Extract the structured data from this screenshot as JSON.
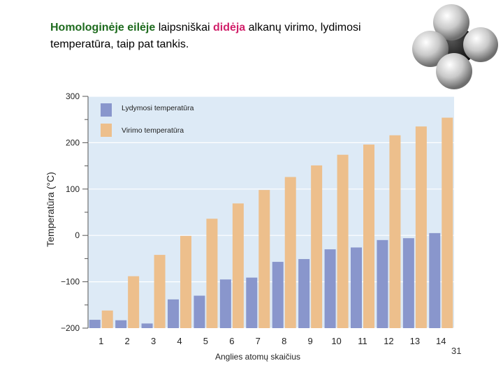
{
  "heading": {
    "part1": "Homologinėje eilėje",
    "part2": " laipsniškai ",
    "part3": "didėja",
    "part4": " alkanų virimo, lydimosi temperatūra, taip pat tankis."
  },
  "slide_number": "31",
  "colors": {
    "plot_background": "#ddeaf6",
    "melting": "#8996cc",
    "boiling": "#edbf8c",
    "heading_green": "#1e6b1e",
    "heading_pink": "#d1206a"
  },
  "chart_data": {
    "type": "bar",
    "title": "",
    "xlabel": "Anglies atomų skaičius",
    "ylabel": "Temperatūra (°C)",
    "ylim": [
      -200,
      300
    ],
    "yticks": [
      "300",
      "200",
      "100",
      "0",
      "−100",
      "−200"
    ],
    "grid": true,
    "legend_position": "top-left",
    "categories": [
      "1",
      "2",
      "3",
      "4",
      "5",
      "6",
      "7",
      "8",
      "9",
      "10",
      "11",
      "12",
      "13",
      "14"
    ],
    "series": [
      {
        "name": "Lydymosi temperatūra",
        "values": [
          -182,
          -183,
          -190,
          -138,
          -130,
          -95,
          -91,
          -57,
          -51,
          -30,
          -26,
          -10,
          -6,
          5
        ]
      },
      {
        "name": "Virimo temperatūra",
        "values": [
          -162,
          -88,
          -42,
          -1,
          36,
          69,
          98,
          126,
          151,
          174,
          196,
          216,
          235,
          254
        ]
      }
    ]
  }
}
